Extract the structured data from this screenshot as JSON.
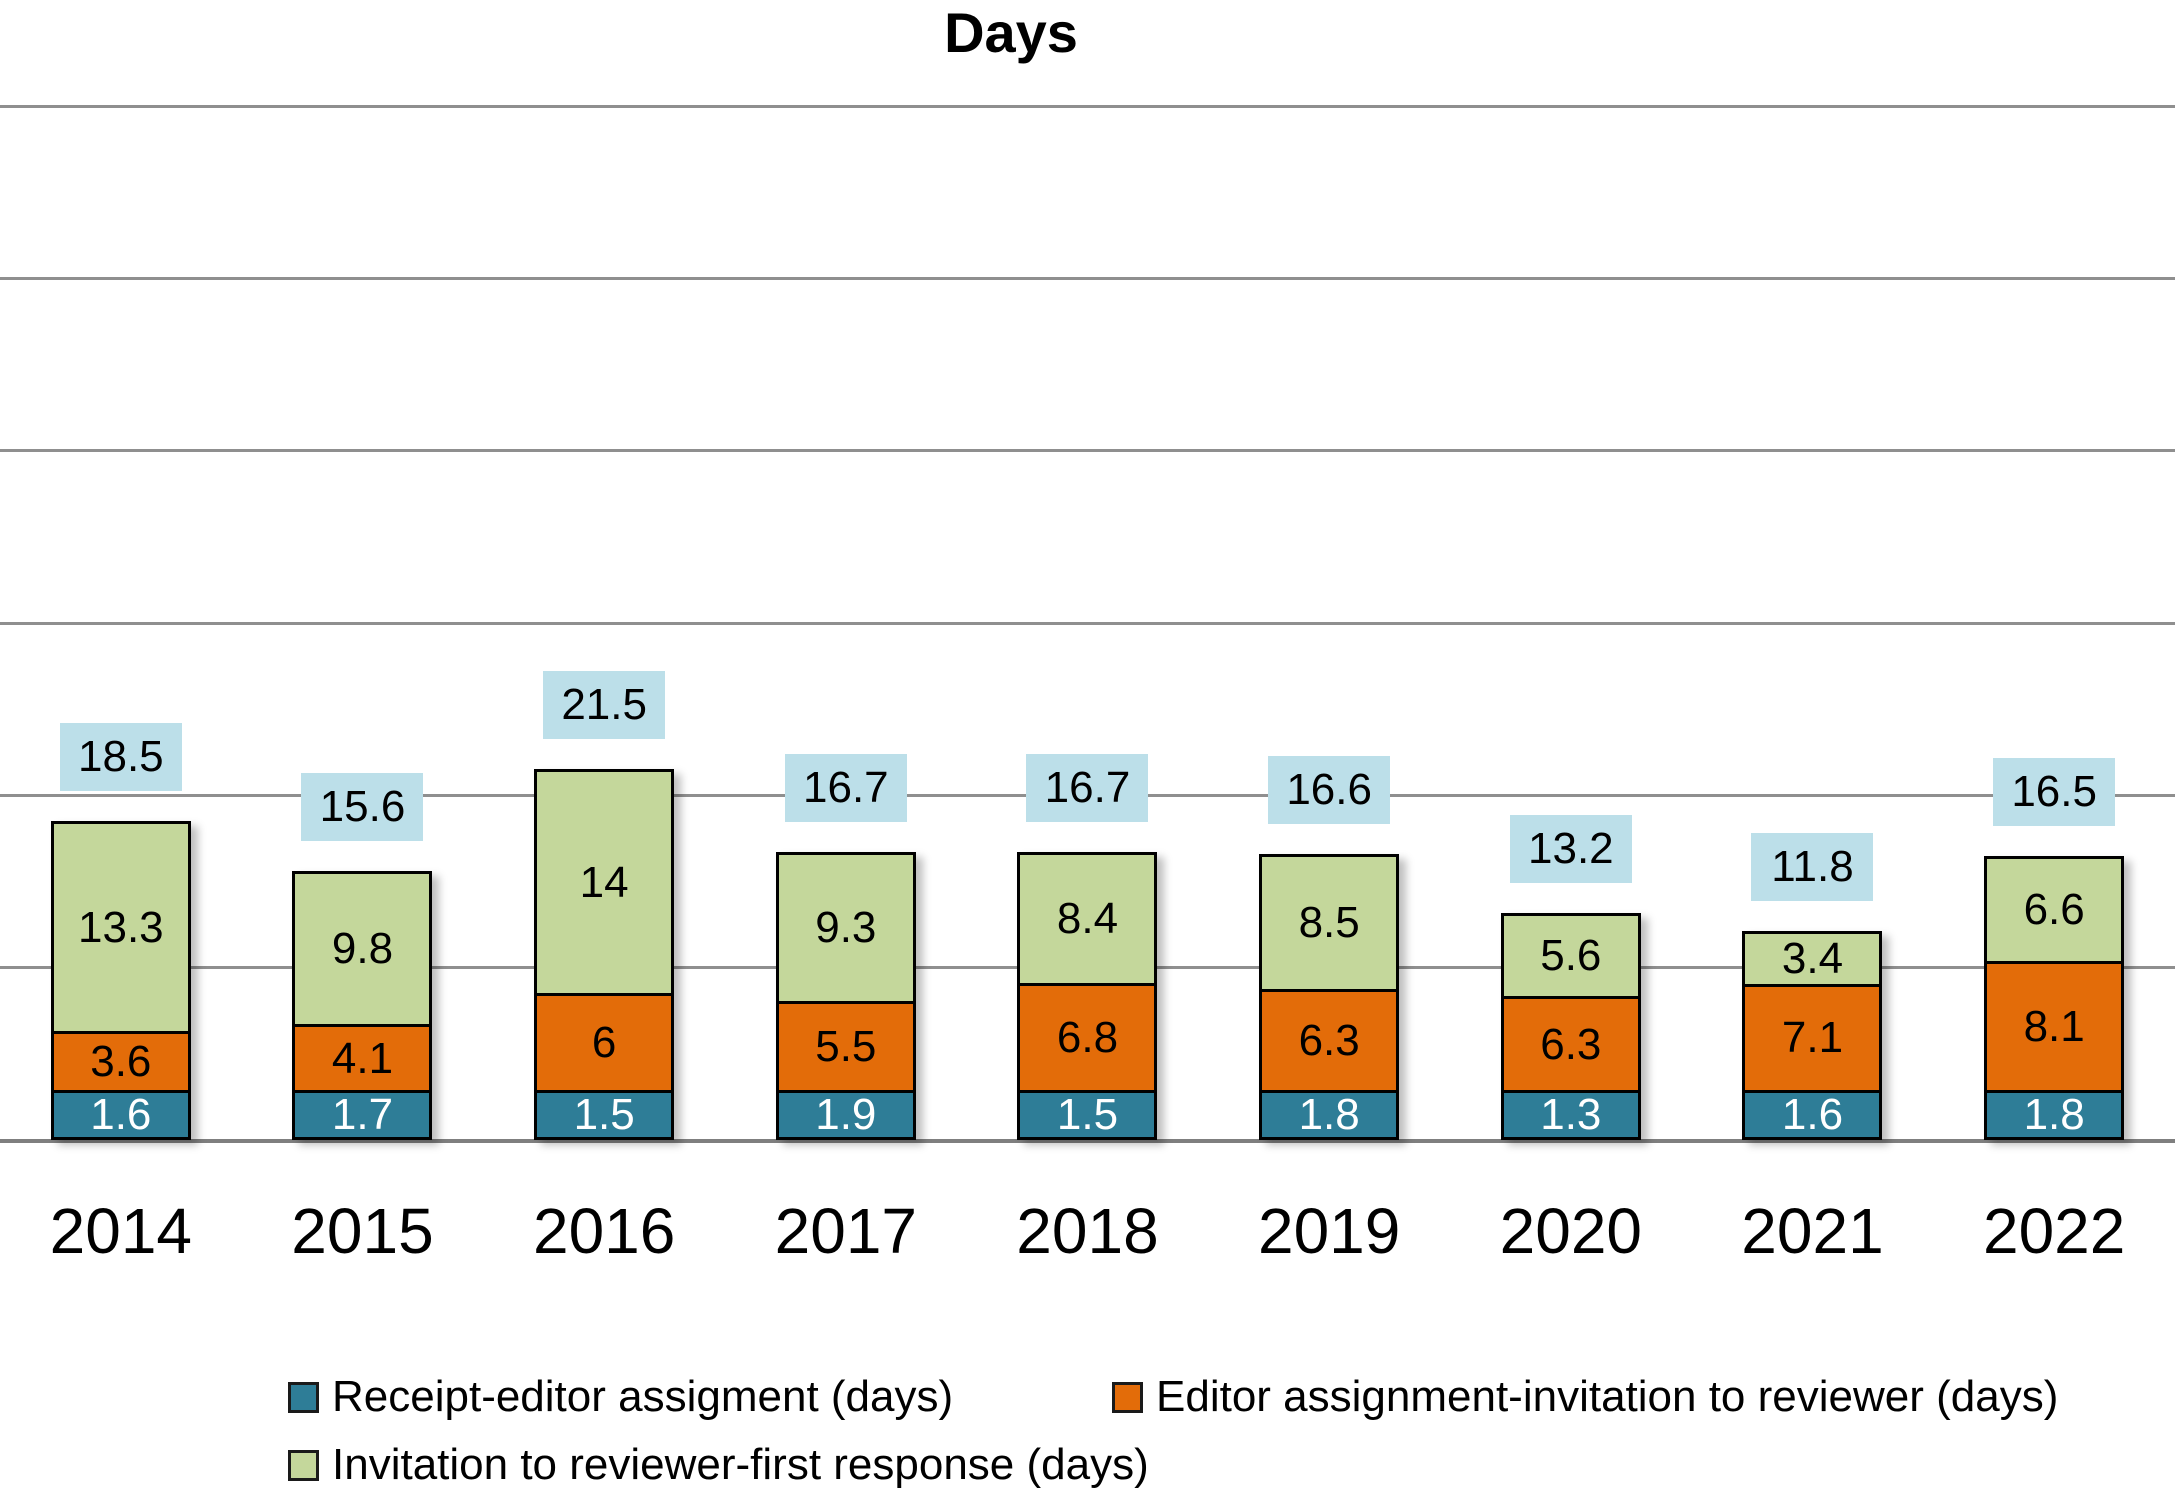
{
  "chart_data": {
    "type": "bar",
    "stacked": true,
    "title": "Days",
    "categories": [
      "2014",
      "2015",
      "2016",
      "2017",
      "2018",
      "2019",
      "2020",
      "2021",
      "2022"
    ],
    "series": [
      {
        "name": "Receipt-editor assigment (days)",
        "color": "#2E7D97",
        "label_color": "#FFFFFF",
        "values": [
          1.6,
          1.7,
          1.5,
          1.9,
          1.5,
          1.8,
          1.3,
          1.6,
          1.8
        ],
        "labels": [
          "1.6",
          "1.7",
          "1.5",
          "1.9",
          "1.5",
          "1.8",
          "1.3",
          "1.6",
          "1.8"
        ]
      },
      {
        "name": "Editor assignment-invitation to reviewer (days)",
        "color": "#E36C09",
        "label_color": "#000000",
        "values": [
          3.6,
          4.1,
          6,
          5.5,
          6.8,
          6.3,
          6.3,
          7.1,
          8.1
        ],
        "labels": [
          "3.6",
          "4.1",
          "6",
          "5.5",
          "6.8",
          "6.3",
          "6.3",
          "7.1",
          "8.1"
        ]
      },
      {
        "name": "Invitation to reviewer-first response (days)",
        "color": "#C4D79B",
        "label_color": "#000000",
        "values": [
          13.3,
          9.8,
          14,
          9.3,
          8.4,
          8.5,
          5.6,
          3.4,
          6.6
        ],
        "labels": [
          "13.3",
          "9.8",
          "14",
          "9.3",
          "8.4",
          "8.5",
          "5.6",
          "3.4",
          "6.6"
        ]
      }
    ],
    "totals": [
      "18.5",
      "15.6",
      "21.5",
      "16.7",
      "16.7",
      "16.6",
      "13.2",
      "11.8",
      "16.5"
    ],
    "ylim": [
      0,
      60
    ],
    "gridline_step": 10,
    "grid": "horizontal",
    "y_axis_labels_visible": false,
    "legend_position": "bottom"
  },
  "colors": {
    "background": "#FFFFFF",
    "total_badge_bg": "#BCDFE9",
    "gridline": "#8F8F8F",
    "baseline": "#7F7F7F",
    "bar_border": "#000000",
    "text": "#000000"
  }
}
